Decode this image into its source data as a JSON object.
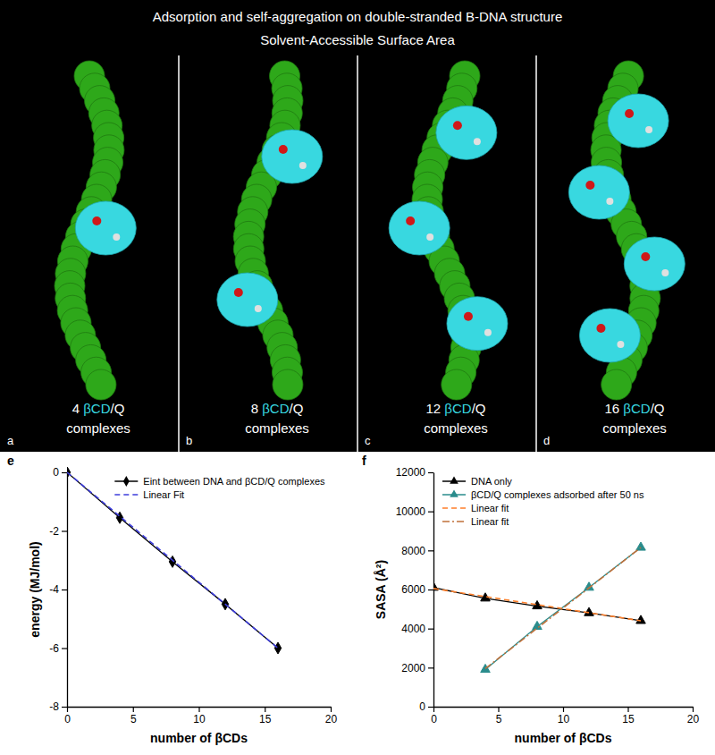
{
  "figure": {
    "title": "Adsorption and self-aggregation on double-stranded B-DNA structure",
    "subtitle": "Solvent-Accessible Surface Area",
    "panels": [
      {
        "letter": "a",
        "label": [
          "4 βCD/Q",
          "complexes"
        ]
      },
      {
        "letter": "b",
        "label": [
          "8 βCD/Q",
          "complexes"
        ]
      },
      {
        "letter": "c",
        "label": [
          "12 βCD/Q",
          "complexes"
        ]
      },
      {
        "letter": "d",
        "label": [
          "16 βCD/Q",
          "complexes"
        ]
      }
    ]
  },
  "chart_data": [
    {
      "letter": "e",
      "type": "line",
      "xlabel": "number of βCDs",
      "ylabel": "energy (MJ/mol)",
      "xlim": [
        0,
        20
      ],
      "xticks": [
        0,
        5,
        10,
        15,
        20
      ],
      "ylim": [
        -8,
        0
      ],
      "yticks": [
        -8,
        -6,
        -4,
        -2,
        0
      ],
      "legend": "upper right",
      "series": [
        {
          "name": "Eint between DNA and βCD/Q complexes",
          "color": "#000000",
          "marker": "diamond",
          "line_style": "solid",
          "x": [
            0,
            4,
            8,
            12,
            16
          ],
          "values": [
            0,
            -1.55,
            -3.05,
            -4.5,
            -6.0
          ]
        },
        {
          "name": "Linear Fit",
          "color": "#3c3cdc",
          "marker": "none",
          "line_style": "dashed",
          "x": [
            0,
            16
          ],
          "values": [
            0,
            -6.0
          ]
        }
      ]
    },
    {
      "letter": "f",
      "type": "line",
      "xlabel": "number of βCDs",
      "ylabel": "SASA (Å²)",
      "xlim": [
        0,
        20
      ],
      "xticks": [
        0,
        5,
        10,
        15,
        20
      ],
      "ylim": [
        0,
        12000
      ],
      "yticks": [
        0,
        2000,
        4000,
        6000,
        8000,
        10000,
        12000
      ],
      "legend": "upper left",
      "series": [
        {
          "name": "DNA only",
          "color": "#000000",
          "marker": "triangle",
          "line_style": "solid",
          "x": [
            0,
            4,
            8,
            12,
            16
          ],
          "values": [
            6100,
            5550,
            5150,
            4800,
            4400
          ]
        },
        {
          "name": "βCD/Q complexes adsorbed after 50 ns",
          "color": "#2a8c8c",
          "marker": "triangle",
          "line_style": "solid",
          "x": [
            4,
            8,
            12,
            16
          ],
          "values": [
            1900,
            4100,
            6100,
            8150
          ]
        },
        {
          "name": "Linear fit",
          "color": "#ff7f2a",
          "marker": "none",
          "line_style": "dashed",
          "x": [
            0,
            16
          ],
          "values": [
            6050,
            4400
          ]
        },
        {
          "name": "Linear fit",
          "color": "#c0703a",
          "marker": "none",
          "line_style": "dashdot",
          "x": [
            4,
            16
          ],
          "values": [
            1950,
            8150
          ]
        }
      ]
    }
  ]
}
